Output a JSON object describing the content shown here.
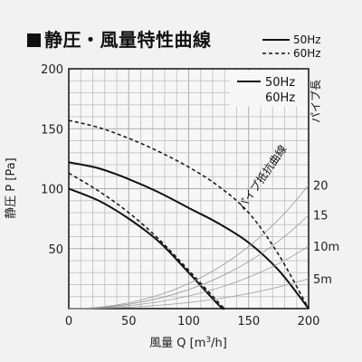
{
  "title": "静圧・風量特性曲線",
  "legend_top": [
    {
      "label": "50Hz",
      "style": "solid"
    },
    {
      "label": "60Hz",
      "style": "dashed"
    }
  ],
  "chart_data": {
    "type": "line",
    "xlabel": "風量 Q [m3/h]",
    "xlabel_main": "風量 Q [m",
    "xlabel_sup": "3",
    "xlabel_end": "/h]",
    "ylabel": "静圧 P [Pa]",
    "xlim": [
      0,
      200
    ],
    "ylim": [
      0,
      200
    ],
    "x_ticks": [
      0,
      50,
      100,
      150,
      200
    ],
    "y_ticks": [
      50,
      100,
      150,
      200
    ],
    "grid": true,
    "legend_position": "top-right",
    "legend": [
      {
        "label": "50Hz",
        "style": "solid"
      },
      {
        "label": "60Hz",
        "style": "dashed"
      }
    ],
    "series": [
      {
        "name": "50Hz",
        "style": "solid",
        "x": [
          0,
          25,
          50,
          75,
          100,
          125,
          130
        ],
        "y": [
          100,
          90,
          75,
          56,
          30,
          3,
          0
        ]
      },
      {
        "name": "50Hz",
        "style": "solid",
        "x": [
          0,
          25,
          50,
          75,
          100,
          125,
          150,
          175,
          200
        ],
        "y": [
          122,
          117,
          108,
          97,
          84,
          71,
          55,
          32,
          0
        ]
      },
      {
        "name": "60Hz",
        "style": "dashed",
        "x": [
          0,
          25,
          50,
          75,
          100,
          125,
          130
        ],
        "y": [
          113,
          98,
          80,
          58,
          32,
          5,
          0
        ]
      },
      {
        "name": "60Hz",
        "style": "dashed",
        "x": [
          0,
          25,
          50,
          75,
          100,
          125,
          150,
          175,
          200
        ],
        "y": [
          157,
          151,
          142,
          131,
          118,
          102,
          80,
          45,
          0
        ]
      }
    ],
    "right_axis": {
      "label": "パイプ長",
      "ticks": [
        {
          "label": "5m",
          "y": 25
        },
        {
          "label": "10m",
          "y": 52
        },
        {
          "label": "15",
          "y": 78
        },
        {
          "label": "20",
          "y": 103
        }
      ]
    },
    "annotation": "パイプ抵抗曲線"
  }
}
